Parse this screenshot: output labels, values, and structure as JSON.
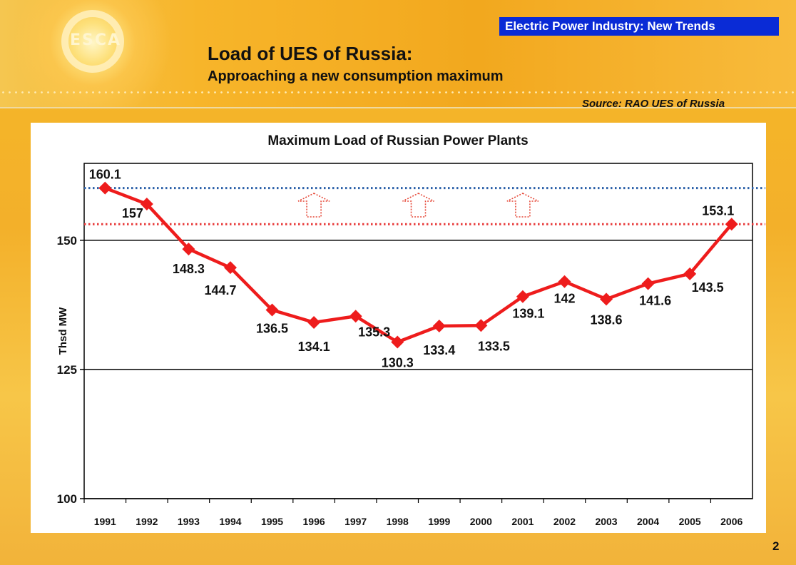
{
  "header": {
    "section_tag": "Electric Power Industry: New Trends",
    "title": "Load of UES of Russia:",
    "subtitle": "Approaching a new consumption maximum",
    "source": "Source: RAO UES of Russia",
    "logo_text": "ESCA"
  },
  "page_number": "2",
  "colors": {
    "series": "#ee1c1c",
    "ref_high": "#2a5fa8",
    "ref_low": "#e83a3a",
    "arrow": "#e64a3a",
    "section_tag_bg": "#0a2bd6"
  },
  "chart_data": {
    "type": "line",
    "title": "Maximum Load of Russian Power Plants",
    "xlabel": "",
    "ylabel": "Thsd MW",
    "categories": [
      "1991",
      "1992",
      "1993",
      "1994",
      "1995",
      "1996",
      "1997",
      "1998",
      "1999",
      "2000",
      "2001",
      "2002",
      "2003",
      "2004",
      "2005",
      "2006"
    ],
    "series": [
      {
        "values": [
          160.1,
          157,
          148.3,
          144.7,
          136.5,
          134.1,
          135.3,
          130.3,
          133.4,
          133.5,
          139.1,
          142,
          138.6,
          141.6,
          143.5,
          153.1
        ],
        "labels": [
          "160.1",
          "157",
          "148.3",
          "144.7",
          "136.5",
          "134.1",
          "135.3",
          "130.3",
          "133.4",
          "133.5",
          "139.1",
          "142",
          "138.6",
          "141.6",
          "143.5",
          "153.1"
        ]
      }
    ],
    "ylim": [
      100,
      160
    ],
    "yticks": [
      "100",
      "125",
      "150"
    ],
    "reference_lines": [
      {
        "value": 160.1,
        "style": "dotted",
        "color": "#2a5fa8"
      },
      {
        "value": 153.1,
        "style": "dotted",
        "color": "#e83a3a"
      }
    ],
    "annotations": [
      "up-arrow",
      "up-arrow",
      "up-arrow"
    ],
    "grid": "horizontal at ticks"
  }
}
